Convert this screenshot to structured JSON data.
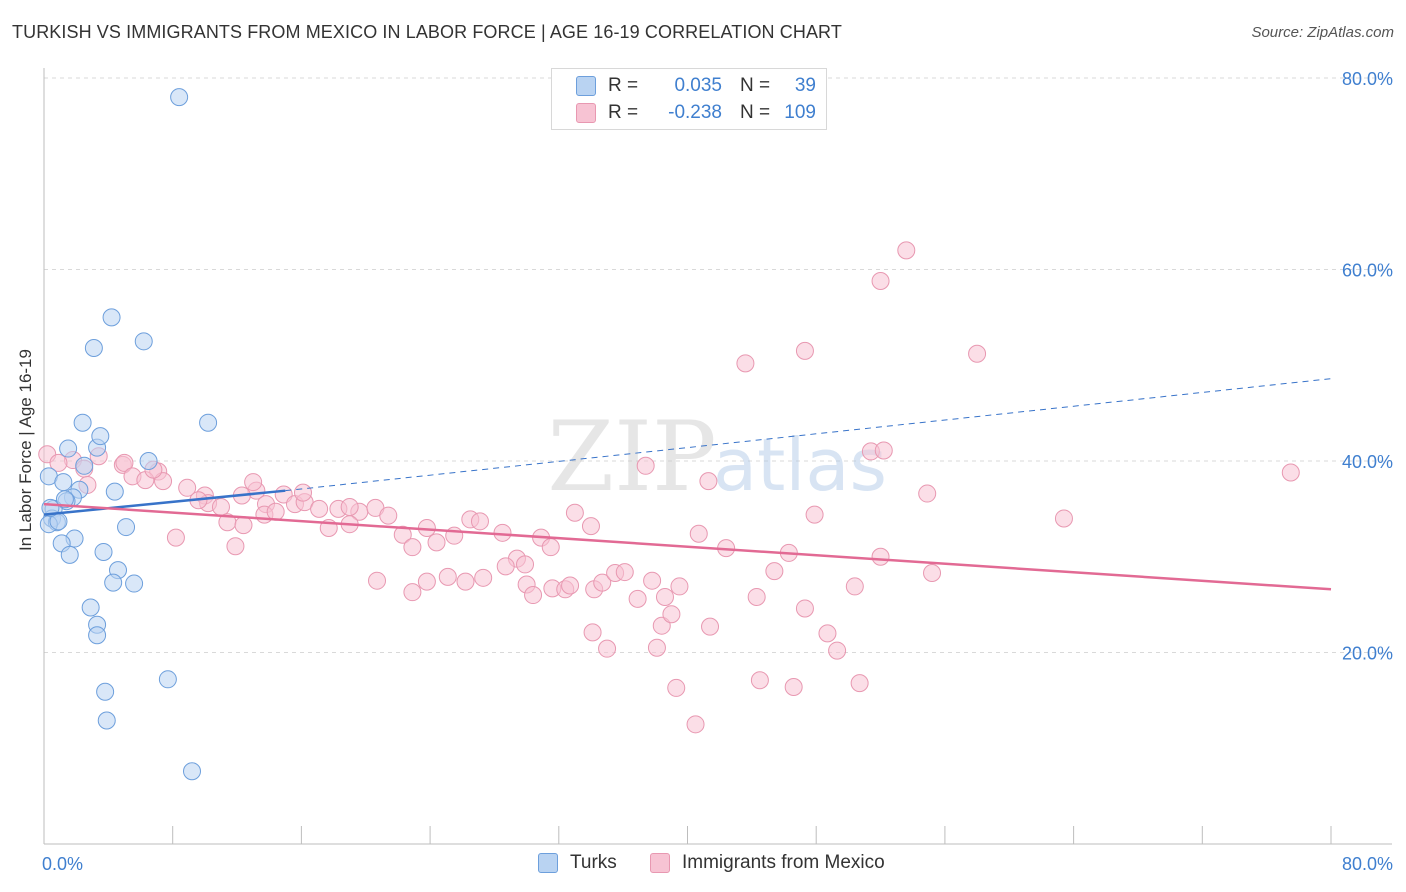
{
  "header": {
    "title": "TURKISH VS IMMIGRANTS FROM MEXICO IN LABOR FORCE | AGE 16-19 CORRELATION CHART",
    "source": "Source: ZipAtlas.com"
  },
  "watermark": {
    "zip": "ZIP",
    "atlas": "atlas"
  },
  "legend": {
    "rows": [
      {
        "r_label": "R =",
        "r_value": "0.035",
        "n_label": "N =",
        "n_value": "39"
      },
      {
        "r_label": "R =",
        "r_value": "-0.238",
        "n_label": "N =",
        "n_value": "109"
      }
    ]
  },
  "bottom_legend": {
    "items": [
      {
        "label": "Turks"
      },
      {
        "label": "Immigrants from Mexico"
      }
    ]
  },
  "colors": {
    "turks_fill": "#b9d3f2",
    "turks_stroke": "#6d9fdc",
    "turks_line": "#3873c9",
    "mexico_fill": "#f7c3d3",
    "mexico_stroke": "#e898b1",
    "mexico_line": "#e26a94",
    "tick_label": "#3f7fcf",
    "grid": "#d9d9d9"
  },
  "chart_data": {
    "type": "scatter",
    "title": "TURKISH VS IMMIGRANTS FROM MEXICO IN LABOR FORCE | AGE 16-19 CORRELATION CHART",
    "xlabel": "",
    "ylabel": "In Labor Force | Age 16-19",
    "xlim": [
      0,
      80
    ],
    "ylim": [
      0,
      80
    ],
    "x_tick_labels": [
      "0.0%",
      "80.0%"
    ],
    "y_ticks": [
      20,
      40,
      60,
      80
    ],
    "y_tick_labels": [
      "20.0%",
      "40.0%",
      "60.0%",
      "80.0%"
    ],
    "grid": "horizontal dashed",
    "legend_position": "top-center",
    "series": [
      {
        "name": "Turks",
        "r": 0.035,
        "n": 39,
        "trend": {
          "x0": 0,
          "y0": 34.4,
          "x1": 15,
          "y1": 36.9,
          "extend_x": 80,
          "extend_y": 48.6
        },
        "points": [
          [
            8.4,
            78.0
          ],
          [
            4.2,
            55.0
          ],
          [
            6.2,
            52.5
          ],
          [
            3.1,
            51.8
          ],
          [
            10.2,
            44.0
          ],
          [
            2.4,
            44.0
          ],
          [
            1.5,
            41.3
          ],
          [
            3.3,
            41.4
          ],
          [
            3.5,
            42.6
          ],
          [
            6.5,
            40.0
          ],
          [
            2.5,
            39.5
          ],
          [
            0.3,
            38.4
          ],
          [
            1.2,
            37.8
          ],
          [
            2.2,
            37.0
          ],
          [
            1.8,
            36.2
          ],
          [
            4.4,
            36.8
          ],
          [
            1.4,
            35.8
          ],
          [
            0.6,
            35.0
          ],
          [
            0.5,
            34.0
          ],
          [
            0.8,
            33.6
          ],
          [
            0.3,
            33.4
          ],
          [
            5.1,
            33.1
          ],
          [
            1.9,
            31.9
          ],
          [
            1.1,
            31.4
          ],
          [
            1.6,
            30.2
          ],
          [
            3.7,
            30.5
          ],
          [
            4.6,
            28.6
          ],
          [
            4.3,
            27.3
          ],
          [
            5.6,
            27.2
          ],
          [
            2.9,
            24.7
          ],
          [
            3.3,
            22.9
          ],
          [
            3.3,
            21.8
          ],
          [
            7.7,
            17.2
          ],
          [
            3.8,
            15.9
          ],
          [
            3.9,
            12.9
          ],
          [
            9.2,
            7.6
          ],
          [
            1.3,
            36.0
          ],
          [
            0.9,
            33.7
          ],
          [
            0.4,
            35.1
          ]
        ]
      },
      {
        "name": "Immigrants from Mexico",
        "r": -0.238,
        "n": 109,
        "trend": {
          "x0": 0,
          "y0": 35.5,
          "x1": 80,
          "y1": 26.6
        },
        "points": [
          [
            53.6,
            62.0
          ],
          [
            52.0,
            58.8
          ],
          [
            47.3,
            51.5
          ],
          [
            58.0,
            51.2
          ],
          [
            43.6,
            50.2
          ],
          [
            77.5,
            38.8
          ],
          [
            51.4,
            41.0
          ],
          [
            0.2,
            40.7
          ],
          [
            1.8,
            40.1
          ],
          [
            0.9,
            39.8
          ],
          [
            2.5,
            39.2
          ],
          [
            3.4,
            40.5
          ],
          [
            4.9,
            39.6
          ],
          [
            5.0,
            39.8
          ],
          [
            7.1,
            38.9
          ],
          [
            5.5,
            38.4
          ],
          [
            6.3,
            38.0
          ],
          [
            7.4,
            37.9
          ],
          [
            8.9,
            37.2
          ],
          [
            10.0,
            36.4
          ],
          [
            13.2,
            36.9
          ],
          [
            14.9,
            36.5
          ],
          [
            10.2,
            35.6
          ],
          [
            11.0,
            35.2
          ],
          [
            12.3,
            36.4
          ],
          [
            13.8,
            35.5
          ],
          [
            15.6,
            35.5
          ],
          [
            16.2,
            35.7
          ],
          [
            17.1,
            35.0
          ],
          [
            18.3,
            35.0
          ],
          [
            19.6,
            34.7
          ],
          [
            20.6,
            35.1
          ],
          [
            21.4,
            34.3
          ],
          [
            13.7,
            34.4
          ],
          [
            11.4,
            33.6
          ],
          [
            12.4,
            33.3
          ],
          [
            14.4,
            34.7
          ],
          [
            17.7,
            33.0
          ],
          [
            19.0,
            33.4
          ],
          [
            22.3,
            32.3
          ],
          [
            23.8,
            33.0
          ],
          [
            25.5,
            32.2
          ],
          [
            26.5,
            33.9
          ],
          [
            27.1,
            33.7
          ],
          [
            28.5,
            32.5
          ],
          [
            30.9,
            32.0
          ],
          [
            33.0,
            34.6
          ],
          [
            34.0,
            33.2
          ],
          [
            8.2,
            32.0
          ],
          [
            11.9,
            31.1
          ],
          [
            22.9,
            31.0
          ],
          [
            24.4,
            31.5
          ],
          [
            31.5,
            31.0
          ],
          [
            29.4,
            29.8
          ],
          [
            29.9,
            29.2
          ],
          [
            28.7,
            29.0
          ],
          [
            26.2,
            27.4
          ],
          [
            25.1,
            27.9
          ],
          [
            27.3,
            27.8
          ],
          [
            22.9,
            26.3
          ],
          [
            20.7,
            27.5
          ],
          [
            23.8,
            27.4
          ],
          [
            30.0,
            27.1
          ],
          [
            30.4,
            26.0
          ],
          [
            31.6,
            26.7
          ],
          [
            32.4,
            26.6
          ],
          [
            32.7,
            27.0
          ],
          [
            34.2,
            26.6
          ],
          [
            34.7,
            27.3
          ],
          [
            35.5,
            28.3
          ],
          [
            36.1,
            28.4
          ],
          [
            37.8,
            27.5
          ],
          [
            39.5,
            26.9
          ],
          [
            38.6,
            25.8
          ],
          [
            36.9,
            25.6
          ],
          [
            34.1,
            22.1
          ],
          [
            38.4,
            22.8
          ],
          [
            39.0,
            24.0
          ],
          [
            35.0,
            20.4
          ],
          [
            38.1,
            20.5
          ],
          [
            41.4,
            22.7
          ],
          [
            42.4,
            30.9
          ],
          [
            44.3,
            25.8
          ],
          [
            45.4,
            28.5
          ],
          [
            46.3,
            30.4
          ],
          [
            47.3,
            24.6
          ],
          [
            48.7,
            22.0
          ],
          [
            49.3,
            20.2
          ],
          [
            50.4,
            26.9
          ],
          [
            52.0,
            30.0
          ],
          [
            40.7,
            32.4
          ],
          [
            41.3,
            37.9
          ],
          [
            44.5,
            17.1
          ],
          [
            46.6,
            16.4
          ],
          [
            50.7,
            16.8
          ],
          [
            40.5,
            12.5
          ],
          [
            39.3,
            16.3
          ],
          [
            37.4,
            39.5
          ],
          [
            54.9,
            36.6
          ],
          [
            47.9,
            34.4
          ],
          [
            52.2,
            41.1
          ],
          [
            63.4,
            34.0
          ],
          [
            55.2,
            28.3
          ],
          [
            13.0,
            37.8
          ],
          [
            16.1,
            36.7
          ],
          [
            2.7,
            37.5
          ],
          [
            6.8,
            39.1
          ],
          [
            9.6,
            35.9
          ],
          [
            19.0,
            35.2
          ]
        ]
      }
    ]
  }
}
